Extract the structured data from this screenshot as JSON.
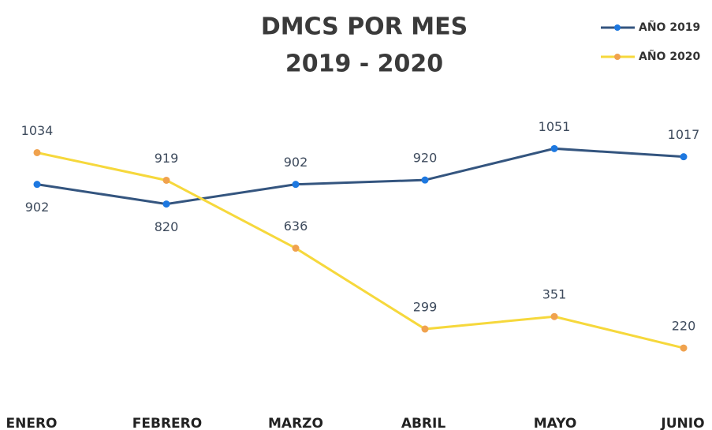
{
  "chart_data": {
    "type": "line",
    "title": "DMCS POR MES",
    "subtitle": "2019 - 2020",
    "categories": [
      "ENERO",
      "FEBRERO",
      "MARZO",
      "ABRIL",
      "MAYO",
      "JUNIO"
    ],
    "series": [
      {
        "name": "AÑO 2019",
        "color": "#34557f",
        "marker_color": "#1d78e0",
        "values": [
          902,
          820,
          902,
          920,
          1051,
          1017
        ]
      },
      {
        "name": "AÑO 2020",
        "color": "#f6d83c",
        "marker_color": "#f0a24e",
        "values": [
          1034,
          919,
          636,
          299,
          351,
          220
        ]
      }
    ],
    "ylim": [
      0,
      1200
    ],
    "grid": false,
    "legend": "top-right"
  }
}
